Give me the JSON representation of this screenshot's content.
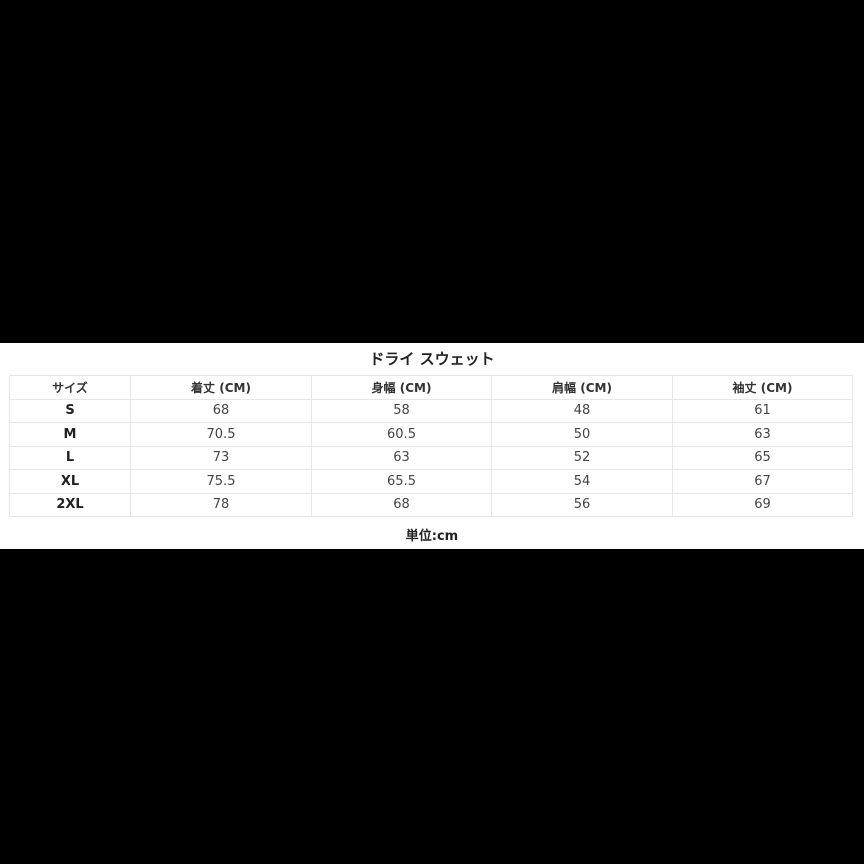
{
  "title": "ドライ スウェット",
  "table": {
    "headers": [
      "サイズ",
      "着丈 (CM)",
      "身幅 (CM)",
      "肩幅 (CM)",
      "袖丈 (CM)"
    ],
    "rows": [
      [
        "S",
        "68",
        "58",
        "48",
        "61"
      ],
      [
        "M",
        "70.5",
        "60.5",
        "50",
        "63"
      ],
      [
        "L",
        "73",
        "63",
        "52",
        "65"
      ],
      [
        "XL",
        "75.5",
        "65.5",
        "54",
        "67"
      ],
      [
        "2XL",
        "78",
        "68",
        "56",
        "69"
      ]
    ]
  },
  "unit_note": "単位:cm"
}
